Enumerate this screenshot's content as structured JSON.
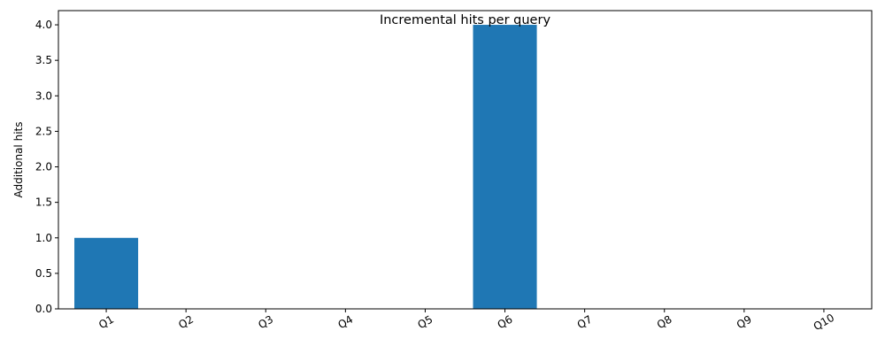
{
  "chart_data": {
    "type": "bar",
    "title": "Incremental hits per query",
    "xlabel": "",
    "ylabel": "Additional hits",
    "categories": [
      "Q1",
      "Q2",
      "Q3",
      "Q4",
      "Q5",
      "Q6",
      "Q7",
      "Q8",
      "Q9",
      "Q10"
    ],
    "values": [
      1,
      0,
      0,
      0,
      0,
      4,
      0,
      0,
      0,
      0
    ],
    "ylim": [
      0,
      4.2
    ],
    "yticks": [
      "0.0",
      "0.5",
      "1.0",
      "1.5",
      "2.0",
      "2.5",
      "3.0",
      "3.5",
      "4.0"
    ],
    "bar_color": "#1f77b4",
    "grid": false,
    "xtick_rotation_deg": 30
  }
}
